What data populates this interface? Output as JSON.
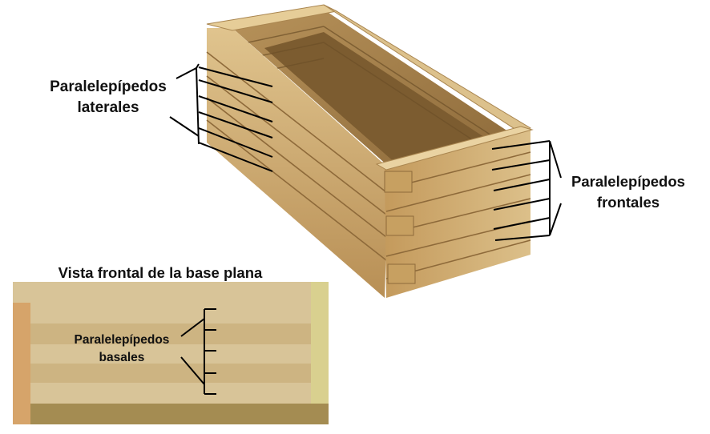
{
  "diagram": {
    "lateral_label": {
      "line1": "Paralelepípedos",
      "line2": "laterales"
    },
    "frontal_label": {
      "line1": "Paralelepípedos",
      "line2": "frontales"
    },
    "front_view_title": "Vista frontal de la base plana",
    "basal_label": {
      "line1": "Paralelepípedos",
      "line2": "basales"
    }
  },
  "colors": {
    "wood_light": "#d9c08c",
    "wood_mid": "#c9a46a",
    "wood_dark": "#9c7a45",
    "base_face": "#d8c498",
    "base_stripe": "#cdb482",
    "base_left_post": "#d6a46a",
    "base_right_post": "#d9d08f",
    "base_bottom": "#a48c52",
    "line": "#000000"
  }
}
